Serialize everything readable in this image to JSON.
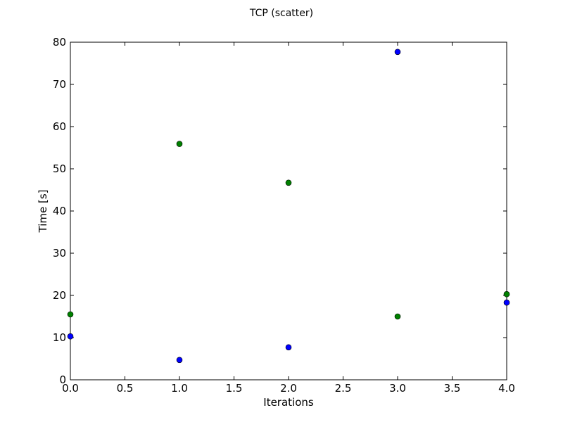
{
  "chart_data": {
    "type": "scatter",
    "title": "TCP (scatter)",
    "xlabel": "Iterations",
    "ylabel": "Time [s]",
    "xlim": [
      0,
      4
    ],
    "ylim": [
      0,
      80
    ],
    "x_ticks": [
      "0.0",
      "0.5",
      "1.0",
      "1.5",
      "2.0",
      "2.5",
      "3.0",
      "3.5",
      "4.0"
    ],
    "y_ticks": [
      "0",
      "10",
      "20",
      "30",
      "40",
      "50",
      "60",
      "70",
      "80"
    ],
    "grid": false,
    "series": [
      {
        "color": "#0000ff",
        "x": [
          0,
          1,
          2,
          3,
          4
        ],
        "y": [
          10.3,
          4.7,
          7.7,
          77.7,
          18.3
        ]
      },
      {
        "color": "#008000",
        "x": [
          0,
          1,
          2,
          3,
          4
        ],
        "y": [
          15.5,
          55.9,
          46.7,
          15.0,
          20.3
        ]
      }
    ]
  }
}
